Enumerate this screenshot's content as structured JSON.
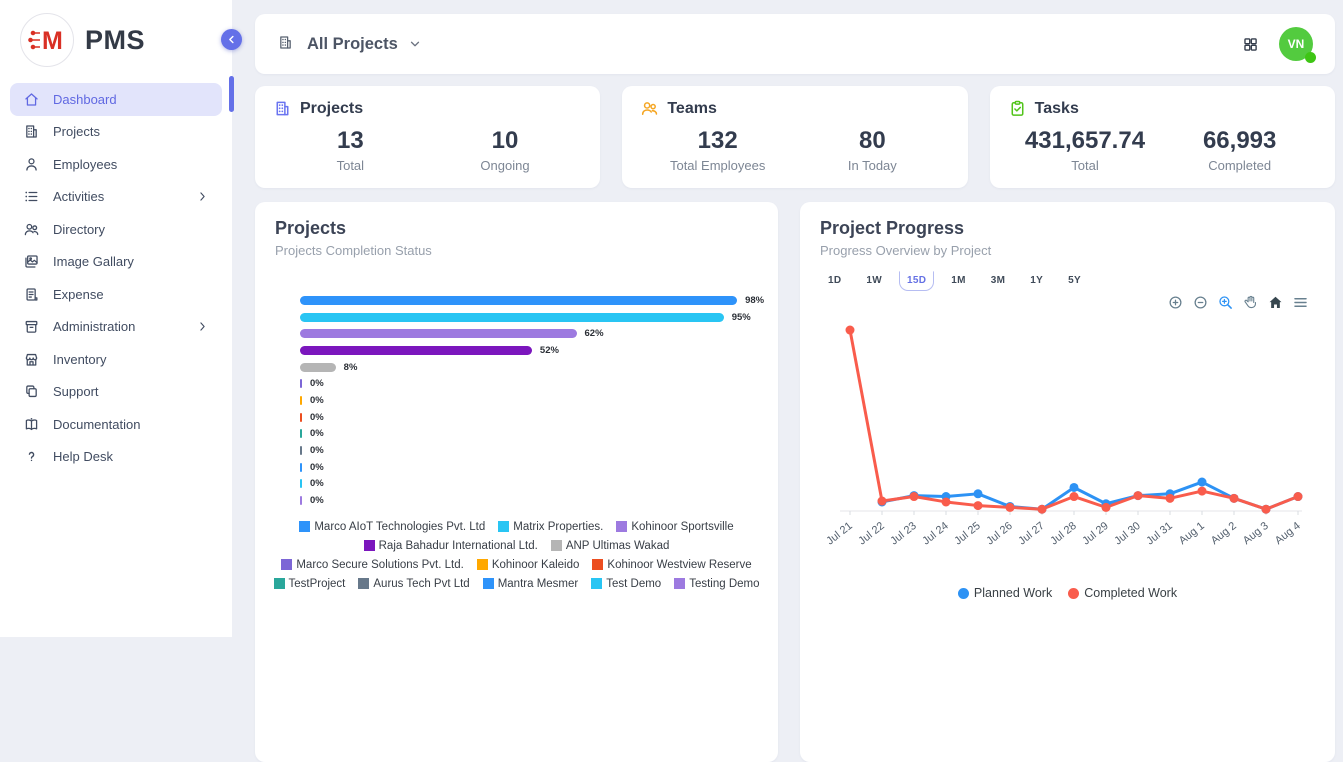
{
  "brand": {
    "name": "PMS",
    "logo_letter": "M"
  },
  "sidebar": {
    "items": [
      {
        "id": "dashboard",
        "label": "Dashboard",
        "icon": "home",
        "active": true,
        "has_submenu": false
      },
      {
        "id": "projects",
        "label": "Projects",
        "icon": "building",
        "active": false,
        "has_submenu": false
      },
      {
        "id": "employees",
        "label": "Employees",
        "icon": "person",
        "active": false,
        "has_submenu": false
      },
      {
        "id": "activities",
        "label": "Activities",
        "icon": "list",
        "active": false,
        "has_submenu": true
      },
      {
        "id": "directory",
        "label": "Directory",
        "icon": "people",
        "active": false,
        "has_submenu": false
      },
      {
        "id": "image-gallary",
        "label": "Image Gallary",
        "icon": "image",
        "active": false,
        "has_submenu": false
      },
      {
        "id": "expense",
        "label": "Expense",
        "icon": "receipt",
        "active": false,
        "has_submenu": false
      },
      {
        "id": "administration",
        "label": "Administration",
        "icon": "archive",
        "active": false,
        "has_submenu": true
      },
      {
        "id": "inventory",
        "label": "Inventory",
        "icon": "store",
        "active": false,
        "has_submenu": false
      },
      {
        "id": "support",
        "label": "Support",
        "icon": "copy",
        "active": false,
        "has_submenu": false
      },
      {
        "id": "documentation",
        "label": "Documentation",
        "icon": "book",
        "active": false,
        "has_submenu": false
      },
      {
        "id": "help-desk",
        "label": "Help Desk",
        "icon": "question",
        "active": false,
        "has_submenu": false
      }
    ]
  },
  "topbar": {
    "project_filter": "All Projects"
  },
  "user": {
    "initials": "VN",
    "avatar_color": "#53cb3f",
    "status_color": "#3ec514"
  },
  "stats": [
    {
      "title": "Projects",
      "icon": "building-icon",
      "icon_color": "#6a74f0",
      "metrics": [
        {
          "value": "13",
          "label": "Total"
        },
        {
          "value": "10",
          "label": "Ongoing"
        }
      ]
    },
    {
      "title": "Teams",
      "icon": "people-icon",
      "icon_color": "#f5a623",
      "metrics": [
        {
          "value": "132",
          "label": "Total Employees"
        },
        {
          "value": "80",
          "label": "In Today"
        }
      ]
    },
    {
      "title": "Tasks",
      "icon": "clipboard-check-icon",
      "icon_color": "#52c41a",
      "metrics": [
        {
          "value": "431,657.74",
          "label": "Total"
        },
        {
          "value": "66,993",
          "label": "Completed"
        }
      ]
    }
  ],
  "left_panel": {
    "title": "Projects",
    "subtitle": "Projects Completion Status"
  },
  "right_panel": {
    "title": "Project Progress",
    "subtitle": "Progress Overview by Project",
    "ranges": [
      "1D",
      "1W",
      "15D",
      "1M",
      "3M",
      "1Y",
      "5Y"
    ],
    "selected_range": "15D",
    "toolbar_icons": [
      "zoom-in",
      "zoom-out",
      "selection-zoom",
      "pan",
      "home",
      "menu"
    ]
  },
  "chart_data": [
    {
      "type": "bar",
      "orientation": "horizontal",
      "title": "Projects Completion Status",
      "unit": "%",
      "xlim": [
        0,
        100
      ],
      "items": [
        {
          "label": "Marco AIoT Technologies Pvt. Ltd",
          "value": 98,
          "color": "#2e93fa"
        },
        {
          "label": "Matrix Properties.",
          "value": 95,
          "color": "#29c5f3"
        },
        {
          "label": "Kohinoor Sportsville",
          "value": 62,
          "color": "#9d7ae0"
        },
        {
          "label": "Raja Bahadur International Ltd.",
          "value": 52,
          "color": "#7b16bd"
        },
        {
          "label": "ANP Ultimas Wakad",
          "value": 8,
          "color": "#b5b5b5"
        },
        {
          "label": "Marco Secure Solutions Pvt. Ltd.",
          "value": 0,
          "color": "#7c66d6"
        },
        {
          "label": "Kohinoor Kaleido",
          "value": 0,
          "color": "#ffa800"
        },
        {
          "label": "Kohinoor Westview Reserve",
          "value": 0,
          "color": "#ec4e20"
        },
        {
          "label": "TestProject",
          "value": 0,
          "color": "#2aa79b"
        },
        {
          "label": "Aurus Tech Pvt Ltd",
          "value": 0,
          "color": "#67788a"
        },
        {
          "label": "Mantra Mesmer",
          "value": 0,
          "color": "#2e93fa"
        },
        {
          "label": "Test Demo",
          "value": 0,
          "color": "#29c5f3"
        },
        {
          "label": "Testing Demo",
          "value": 0,
          "color": "#9d7ae0"
        }
      ],
      "legend_rows": [
        [
          0,
          1,
          2
        ],
        [
          3,
          4
        ],
        [
          5,
          6,
          7
        ],
        [
          8,
          9,
          10,
          11,
          12
        ]
      ]
    },
    {
      "type": "line",
      "title": "Progress Overview by Project",
      "x": [
        "Jul 21",
        "Jul 22",
        "Jul 23",
        "Jul 24",
        "Jul 25",
        "Jul 26",
        "Jul 27",
        "Jul 28",
        "Jul 29",
        "Jul 30",
        "Jul 31",
        "Aug 1",
        "Aug 2",
        "Aug 3",
        "Aug 4"
      ],
      "series": [
        {
          "name": "Planned Work",
          "color": "#2d92f4",
          "values": [
            null,
            5,
            8.5,
            8,
            9.5,
            2.5,
            1,
            13,
            4,
            8.5,
            9.5,
            16,
            7,
            1,
            8
          ]
        },
        {
          "name": "Completed Work",
          "color": "#f95c4c",
          "values": [
            100,
            5.5,
            8,
            5,
            3,
            2,
            1,
            8,
            2,
            8.5,
            7,
            11,
            7,
            1,
            8
          ]
        }
      ],
      "ylim": [
        0,
        105
      ],
      "grid": false,
      "legend_position": "bottom"
    }
  ]
}
